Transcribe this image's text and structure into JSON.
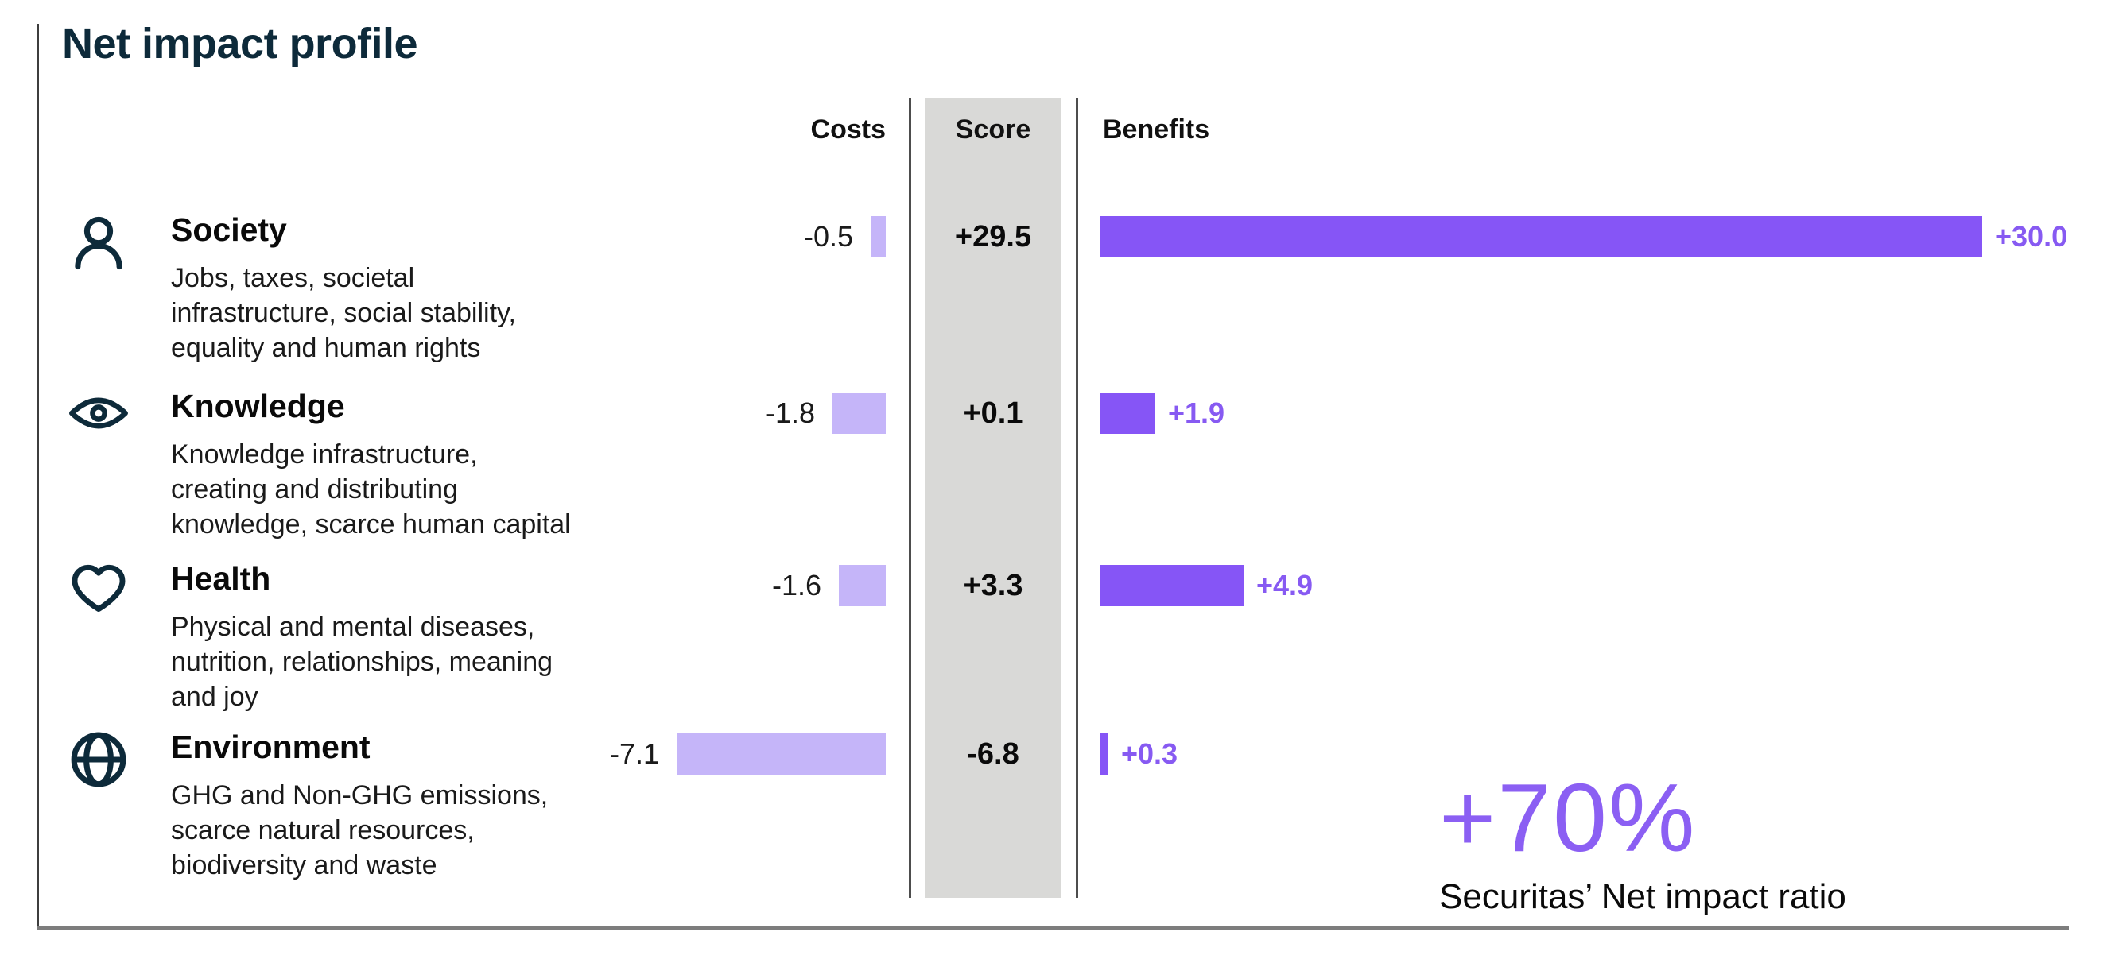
{
  "title": "Net impact profile",
  "columns": {
    "costs": "Costs",
    "score": "Score",
    "benefits": "Benefits"
  },
  "chart_data": {
    "type": "bar",
    "orientation": "horizontal-diverging",
    "value_axis_note": "bars scale symmetric around score column; no axis ticks shown",
    "rows": [
      {
        "label": "Society",
        "icon": "person-icon",
        "description_lines": [
          "Jobs, taxes, societal",
          "infrastructure, social stability,",
          "equality and human rights"
        ],
        "cost": -0.5,
        "cost_label": "-0.5",
        "score": 29.5,
        "score_label": "+29.5",
        "benefit": 30.0,
        "benefit_label": "+30.0"
      },
      {
        "label": "Knowledge",
        "icon": "eye-icon",
        "description_lines": [
          "Knowledge infrastructure,",
          "creating and distributing",
          "knowledge, scarce human capital"
        ],
        "cost": -1.8,
        "cost_label": "-1.8",
        "score": 0.1,
        "score_label": "+0.1",
        "benefit": 1.9,
        "benefit_label": "+1.9"
      },
      {
        "label": "Health",
        "icon": "heart-icon",
        "description_lines": [
          "Physical and mental diseases,",
          "nutrition, relationships, meaning",
          "and joy"
        ],
        "cost": -1.6,
        "cost_label": "-1.6",
        "score": 3.3,
        "score_label": "+3.3",
        "benefit": 4.9,
        "benefit_label": "+4.9"
      },
      {
        "label": "Environment",
        "icon": "globe-icon",
        "description_lines": [
          "GHG and Non-GHG emissions,",
          "scarce natural resources,",
          "biodiversity and waste"
        ],
        "cost": -7.1,
        "cost_label": "-7.1",
        "score": -6.8,
        "score_label": "-6.8",
        "benefit": 0.3,
        "benefit_label": "+0.3"
      }
    ],
    "colors": {
      "cost_bar": "#c5b5f9",
      "benefit_bar": "#8655f6",
      "benefit_label": "#875af2",
      "score_column_bg": "#d9d9d7",
      "navy": "#0d2a3a",
      "accent": "#8b5ff3"
    },
    "legend": "none",
    "grid": "off"
  },
  "summary": {
    "ratio_value": "+70%",
    "ratio_caption": "Securitas’ Net impact ratio"
  }
}
